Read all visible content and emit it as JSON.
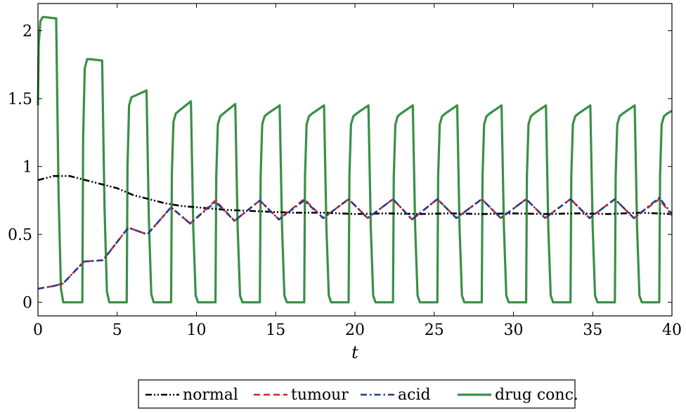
{
  "chart_data": {
    "type": "line",
    "title": "",
    "xlabel": "t",
    "ylabel": "",
    "xlim": [
      0,
      40
    ],
    "ylim": [
      -0.1,
      2.2
    ],
    "xticks": [
      0,
      5,
      10,
      15,
      20,
      25,
      30,
      35,
      40
    ],
    "yticks": [
      0,
      0.5,
      1,
      1.5,
      2
    ],
    "xtick_labels": [
      "0",
      "5",
      "10",
      "15",
      "20",
      "25",
      "30",
      "35",
      "40"
    ],
    "ytick_labels": [
      "0",
      "0.5",
      "1",
      "1.5",
      "2"
    ],
    "grid": false,
    "legend_position": "bottom-outside",
    "series": [
      {
        "name": "normal",
        "color": "#000000",
        "style": "dash-dot-dot",
        "x": [
          0,
          1,
          2,
          3,
          4,
          5,
          6,
          7,
          8,
          9,
          10,
          12,
          14,
          16,
          18,
          20,
          22,
          24,
          26,
          28,
          30,
          32,
          34,
          36,
          38,
          40
        ],
        "y": [
          0.9,
          0.93,
          0.93,
          0.9,
          0.87,
          0.84,
          0.79,
          0.76,
          0.73,
          0.71,
          0.7,
          0.68,
          0.67,
          0.66,
          0.66,
          0.65,
          0.655,
          0.65,
          0.655,
          0.65,
          0.655,
          0.65,
          0.655,
          0.65,
          0.66,
          0.65
        ]
      },
      {
        "name": "tumour",
        "color": "#d62728",
        "style": "dashed",
        "x": [
          0,
          1,
          1.6,
          2.9,
          4.1,
          5.7,
          6.9,
          8.4,
          9.6,
          11.2,
          12.4,
          14.0,
          15.2,
          16.8,
          18.0,
          19.6,
          20.8,
          22.4,
          23.6,
          25.2,
          26.4,
          28.0,
          29.2,
          30.8,
          32.0,
          33.6,
          34.8,
          36.4,
          37.6,
          39.2,
          40
        ],
        "y": [
          0.1,
          0.12,
          0.14,
          0.3,
          0.31,
          0.55,
          0.5,
          0.7,
          0.58,
          0.75,
          0.6,
          0.75,
          0.61,
          0.76,
          0.62,
          0.76,
          0.62,
          0.76,
          0.61,
          0.76,
          0.62,
          0.76,
          0.62,
          0.76,
          0.62,
          0.76,
          0.62,
          0.76,
          0.62,
          0.76,
          0.64
        ]
      },
      {
        "name": "acid",
        "color": "#1f3f8f",
        "style": "dash-dot",
        "x": [
          0,
          1,
          1.6,
          2.9,
          4.1,
          5.7,
          6.9,
          8.4,
          9.6,
          11.2,
          12.4,
          14.0,
          15.2,
          16.8,
          18.0,
          19.6,
          20.8,
          22.4,
          23.6,
          25.2,
          26.4,
          28.0,
          29.2,
          30.8,
          32.0,
          33.6,
          34.8,
          36.4,
          37.6,
          39.2,
          40
        ],
        "y": [
          0.1,
          0.12,
          0.14,
          0.3,
          0.31,
          0.55,
          0.5,
          0.7,
          0.58,
          0.74,
          0.6,
          0.75,
          0.61,
          0.75,
          0.62,
          0.76,
          0.62,
          0.76,
          0.61,
          0.76,
          0.62,
          0.76,
          0.62,
          0.76,
          0.62,
          0.76,
          0.62,
          0.76,
          0.62,
          0.77,
          0.65
        ]
      },
      {
        "name": "drug conc.",
        "color": "#3a8f47",
        "style": "solid",
        "dosing_period": 2.8,
        "dose_duration": 1.25,
        "first_dose_start": 0,
        "x": [
          0,
          0.05,
          0.15,
          0.3,
          0.45,
          1.15,
          1.3,
          1.45,
          1.6,
          2.8,
          2.85,
          2.95,
          3.1,
          3.3,
          4.05,
          4.2,
          4.35,
          4.5,
          5.6,
          5.65,
          5.75,
          5.9,
          6.1,
          6.85,
          7.0,
          7.15,
          7.3,
          8.4,
          8.45,
          8.55,
          8.7,
          8.9,
          9.65,
          9.8,
          9.95,
          10.1,
          11.2,
          11.25,
          11.35,
          11.5,
          11.7,
          12.45,
          12.6,
          12.75,
          12.9,
          14.0,
          14.05,
          14.15,
          14.3,
          14.5,
          15.25,
          15.4,
          15.55,
          15.7,
          16.8,
          16.85,
          16.95,
          17.1,
          17.3,
          18.05,
          18.2,
          18.35,
          18.5,
          19.6,
          19.65,
          19.75,
          19.9,
          20.1,
          20.85,
          21.0,
          21.15,
          21.3,
          22.4,
          22.45,
          22.55,
          22.7,
          22.9,
          23.65,
          23.8,
          23.95,
          24.1,
          25.2,
          25.25,
          25.35,
          25.5,
          25.7,
          26.45,
          26.6,
          26.75,
          26.9,
          28.0,
          28.05,
          28.15,
          28.3,
          28.5,
          29.25,
          29.4,
          29.55,
          29.7,
          30.8,
          30.85,
          30.95,
          31.1,
          31.3,
          32.05,
          32.2,
          32.35,
          32.5,
          33.6,
          33.65,
          33.75,
          33.9,
          34.1,
          34.85,
          35.0,
          35.15,
          35.3,
          36.4,
          36.45,
          36.55,
          36.7,
          36.9,
          37.65,
          37.8,
          37.95,
          38.1,
          39.2,
          39.25,
          39.35,
          39.5,
          39.7,
          40.0
        ],
        "y": [
          1.45,
          1.9,
          2.07,
          2.1,
          2.1,
          2.09,
          0.8,
          0.1,
          0.0,
          0.0,
          1.2,
          1.72,
          1.79,
          1.79,
          1.78,
          0.7,
          0.08,
          0.0,
          0.0,
          1.0,
          1.45,
          1.51,
          1.52,
          1.56,
          0.6,
          0.06,
          0.0,
          0.0,
          0.95,
          1.33,
          1.39,
          1.41,
          1.48,
          0.55,
          0.05,
          0.0,
          0.0,
          0.93,
          1.31,
          1.37,
          1.39,
          1.46,
          0.55,
          0.05,
          0.0,
          0.0,
          0.93,
          1.31,
          1.37,
          1.39,
          1.45,
          0.55,
          0.05,
          0.0,
          0.0,
          0.93,
          1.31,
          1.37,
          1.39,
          1.45,
          0.55,
          0.05,
          0.0,
          0.0,
          0.93,
          1.31,
          1.37,
          1.39,
          1.45,
          0.55,
          0.05,
          0.0,
          0.0,
          0.93,
          1.31,
          1.37,
          1.39,
          1.45,
          0.55,
          0.05,
          0.0,
          0.0,
          0.93,
          1.31,
          1.37,
          1.39,
          1.45,
          0.55,
          0.05,
          0.0,
          0.0,
          0.93,
          1.31,
          1.37,
          1.39,
          1.45,
          0.55,
          0.05,
          0.0,
          0.0,
          0.93,
          1.31,
          1.37,
          1.39,
          1.45,
          0.55,
          0.05,
          0.0,
          0.0,
          0.93,
          1.31,
          1.37,
          1.39,
          1.45,
          0.55,
          0.05,
          0.0,
          0.0,
          0.93,
          1.31,
          1.37,
          1.39,
          1.45,
          0.55,
          0.05,
          0.0,
          0.0,
          0.93,
          1.31,
          1.37,
          1.39,
          1.41
        ]
      }
    ]
  }
}
